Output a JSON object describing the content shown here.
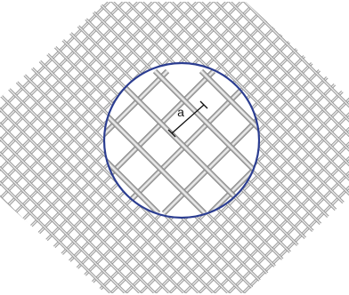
{
  "diagram": {
    "kind": "woven wire mesh with magnified circle",
    "dimension_label": "a",
    "colors": {
      "background": "#ffffff",
      "wire_dark": "#8a8a8a",
      "wire_mid": "#c4c4c4",
      "wire_light": "#f2f2f2",
      "circle_stroke": "#2b3d91",
      "dimension_line": "#111111"
    }
  }
}
